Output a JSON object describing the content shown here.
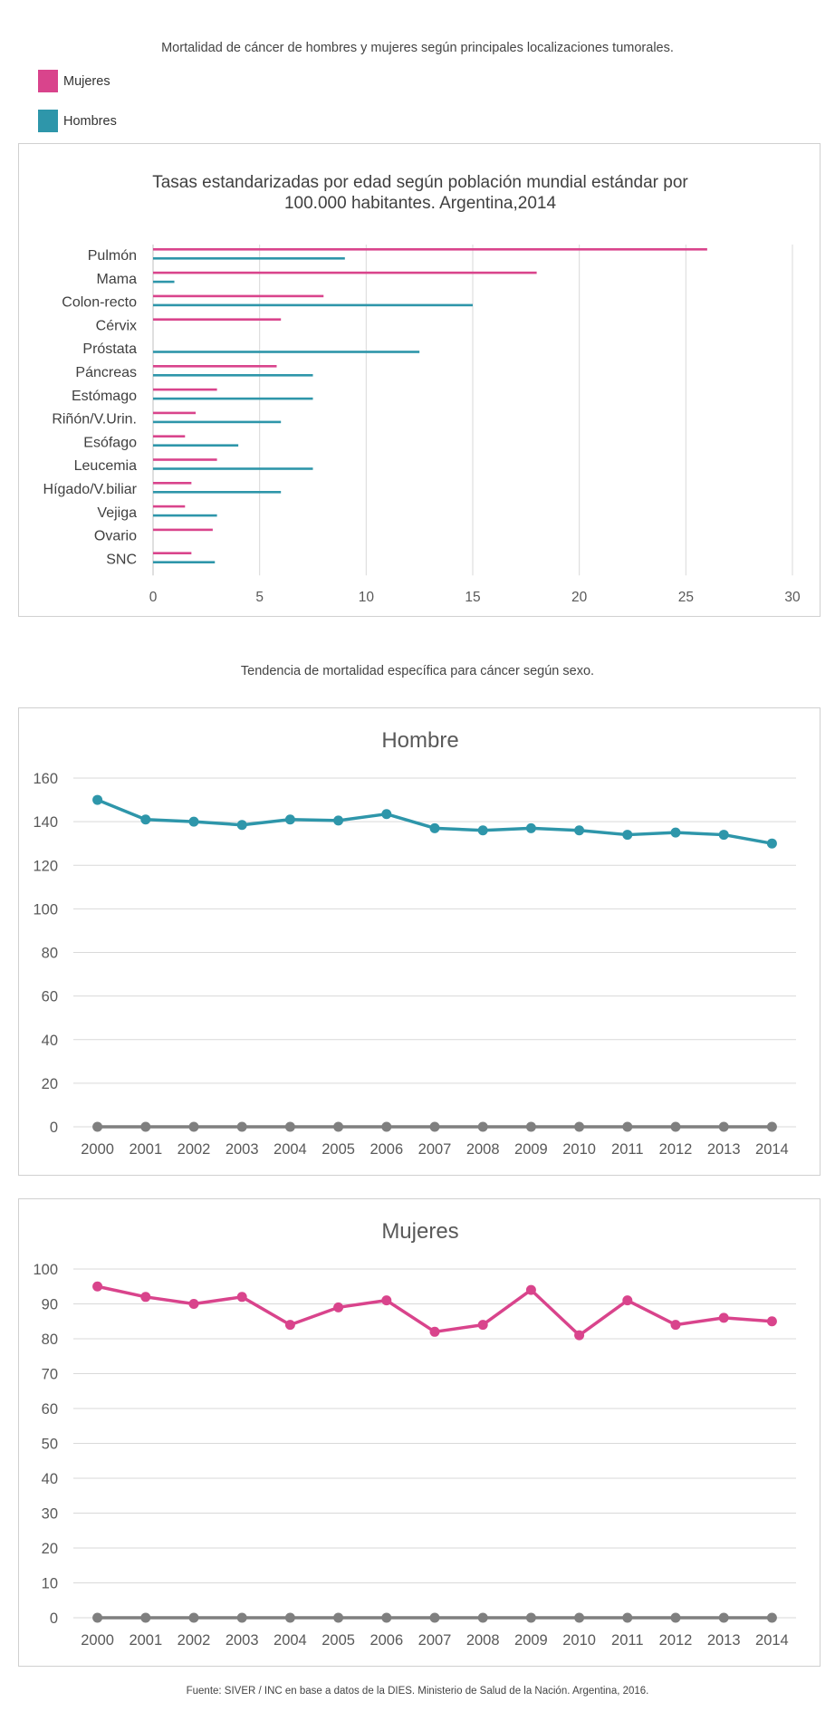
{
  "header": {
    "title": "Mortalidad de cáncer de hombres y mujeres según principales localizaciones tumorales."
  },
  "legend": [
    {
      "label": "Mujeres",
      "color": "#d9448c"
    },
    {
      "label": "Hombres",
      "color": "#2e96aa"
    }
  ],
  "section2_title": "Tendencia de mortalidad específica para cáncer según sexo.",
  "footer": "Fuente: SIVER / INC en base a datos de la DIES. Ministerio de Salud de la Nación. Argentina, 2016.",
  "chart_data": [
    {
      "type": "bar",
      "orientation": "horizontal",
      "title": "Tasas estandarizadas por edad según población mundial  estándar por 100.000 habitantes. Argentina,2014",
      "categories": [
        "Pulmón",
        "Mama",
        "Colon-recto",
        "Cérvix",
        "Próstata",
        "Páncreas",
        "Estómago",
        "Riñón/V.Urin.",
        "Esófago",
        "Leucemia",
        "Hígado/V.biliar",
        "Vejiga",
        "Ovario",
        "SNC"
      ],
      "series": [
        {
          "name": "Mujeres",
          "color": "#d9448c",
          "values": [
            26,
            18,
            8,
            6,
            0,
            5.8,
            3,
            2,
            1.5,
            3,
            1.8,
            1.5,
            2.8,
            1.8
          ]
        },
        {
          "name": "Hombres",
          "color": "#2e96aa",
          "values": [
            9,
            1,
            15,
            0,
            12.5,
            7.5,
            7.5,
            6,
            4,
            7.5,
            6,
            3,
            0,
            2.9
          ]
        }
      ],
      "xlim": [
        0,
        30
      ],
      "xticks": [
        0,
        5,
        10,
        15,
        20,
        25,
        30
      ],
      "grid": true
    },
    {
      "type": "line",
      "title": "Hombre",
      "x": [
        "2000",
        "2001",
        "2002",
        "2003",
        "2004",
        "2005",
        "2006",
        "2007",
        "2008",
        "2009",
        "2010",
        "2011",
        "2012",
        "2013",
        "2014"
      ],
      "series": [
        {
          "color": "#2e96aa",
          "values": [
            150,
            141,
            140,
            138.5,
            141,
            140.5,
            143.5,
            137,
            136,
            137,
            136,
            134,
            135,
            134,
            130
          ]
        },
        {
          "color": "#7f7f7f",
          "values": [
            0,
            0,
            0,
            0,
            0,
            0,
            0,
            0,
            0,
            0,
            0,
            0,
            0,
            0,
            0
          ]
        }
      ],
      "ylim": [
        0,
        160
      ],
      "yticks": [
        0,
        20,
        40,
        60,
        80,
        100,
        120,
        140,
        160
      ],
      "grid": true
    },
    {
      "type": "line",
      "title": "Mujeres",
      "x": [
        "2000",
        "2001",
        "2002",
        "2003",
        "2004",
        "2005",
        "2006",
        "2007",
        "2008",
        "2009",
        "2010",
        "2011",
        "2012",
        "2013",
        "2014"
      ],
      "series": [
        {
          "color": "#d9448c",
          "values": [
            95,
            92,
            90,
            92,
            84,
            89,
            91,
            82,
            84,
            94,
            81,
            91,
            84,
            86,
            85
          ]
        },
        {
          "color": "#7f7f7f",
          "values": [
            0,
            0,
            0,
            0,
            0,
            0,
            0,
            0,
            0,
            0,
            0,
            0,
            0,
            0,
            0
          ]
        }
      ],
      "ylim": [
        0,
        100
      ],
      "yticks": [
        0,
        10,
        20,
        30,
        40,
        50,
        60,
        70,
        80,
        90,
        100
      ],
      "grid": true
    }
  ]
}
